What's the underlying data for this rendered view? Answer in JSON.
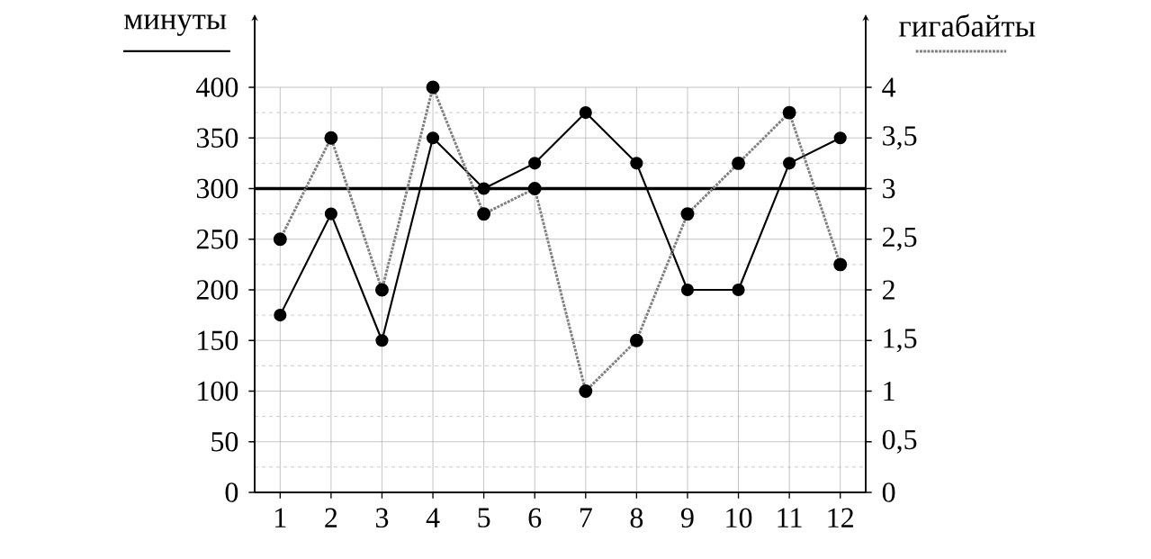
{
  "chart_data": {
    "type": "line",
    "ylabel": "минуты",
    "y2label": "гигабайты",
    "categories": [
      "1",
      "2",
      "3",
      "4",
      "5",
      "6",
      "7",
      "8",
      "9",
      "10",
      "11",
      "12"
    ],
    "series": [
      {
        "color": "#000000",
        "line_style": "solid",
        "values": [
          175,
          275,
          150,
          350,
          300,
          325,
          375,
          325,
          200,
          200,
          325,
          350
        ]
      },
      {
        "color": "#808080",
        "line_style": "dotted",
        "axis": "y2",
        "values": [
          2.5,
          3.5,
          2,
          4,
          2.75,
          3,
          1,
          1.5,
          2.75,
          3.25,
          3.75,
          2.25
        ]
      }
    ],
    "ylim": [
      0,
      400
    ],
    "yticks": [
      0,
      50,
      100,
      150,
      200,
      250,
      300,
      350,
      400
    ],
    "y2lim": [
      0,
      4
    ],
    "y2ticks": [
      0,
      {
        "value": 0.5,
        "label": "0,5"
      },
      1,
      {
        "value": 1.5,
        "label": "1,5"
      },
      2,
      {
        "value": 2.5,
        "label": "2,5"
      },
      3,
      {
        "value": 3.5,
        "label": "3,5"
      },
      4
    ],
    "grid": true,
    "marker": "circle",
    "ref_lines": [
      {
        "axis": "y",
        "value": 300,
        "color": "#000000"
      }
    ]
  }
}
